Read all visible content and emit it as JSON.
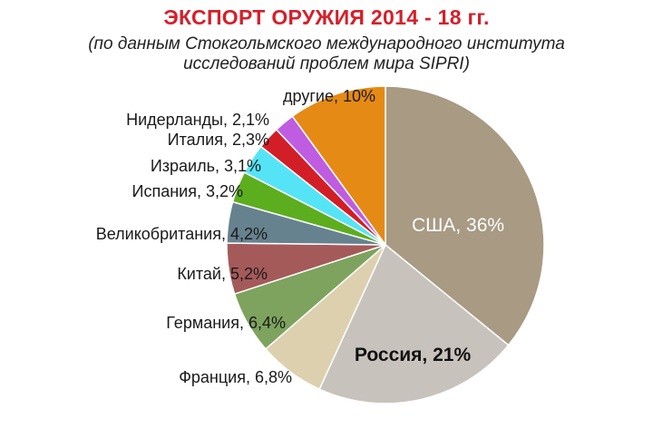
{
  "title": "ЭКСПОРТ ОРУЖИЯ 2014 - 18 гг.",
  "subtitle_line1": "(по данным Стокгольмского международного института",
  "subtitle_line2": "исследований проблем мира SIPRI)",
  "chart_data": {
    "type": "pie",
    "unit": "%",
    "slices": [
      {
        "label": "США, 36%",
        "value": 36,
        "color": "#a89a83"
      },
      {
        "label": "Россия, 21%",
        "value": 21,
        "color": "#c8c2bc"
      },
      {
        "label": "Франция, 6,8%",
        "value": 6.8,
        "color": "#dcd0ae"
      },
      {
        "label": "Германия, 6,4%",
        "value": 6.4,
        "color": "#7da35e"
      },
      {
        "label": "Китай, 5,2%",
        "value": 5.2,
        "color": "#a55a5a"
      },
      {
        "label": "Великобритания, 4,2%",
        "value": 4.2,
        "color": "#67828f"
      },
      {
        "label": "Испания, 3,2%",
        "value": 3.2,
        "color": "#5cae1e"
      },
      {
        "label": "Израиль, 3,1%",
        "value": 3.1,
        "color": "#55e4f6"
      },
      {
        "label": "Италия, 2,3%",
        "value": 2.3,
        "color": "#d21f27"
      },
      {
        "label": "Нидерланды, 2,1%",
        "value": 2.1,
        "color": "#bf5ce0"
      },
      {
        "label": "другие, 10%",
        "value": 10,
        "color": "#e58a14"
      }
    ]
  }
}
